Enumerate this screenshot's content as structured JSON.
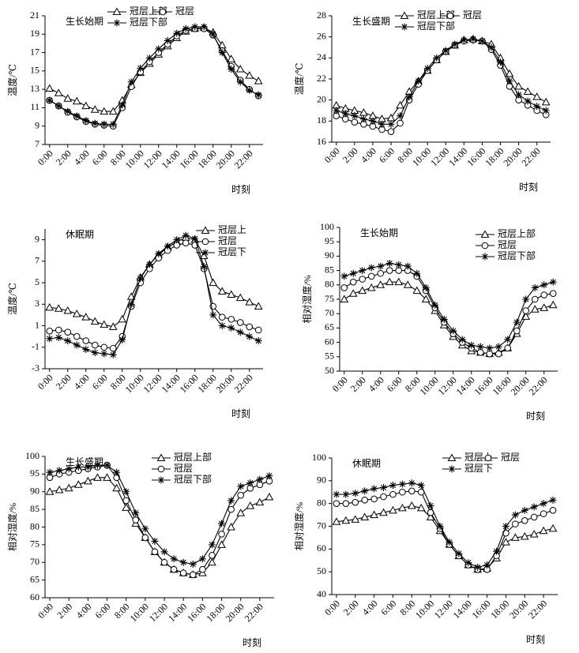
{
  "chart_data": [
    {
      "type": "line",
      "title": "生长始期",
      "y_label": "温度/℃",
      "x_label": "时刻",
      "categories": [
        "0:00",
        null,
        "2:00",
        null,
        "4:00",
        null,
        "6:00",
        null,
        "8:00",
        null,
        "10:00",
        null,
        "12:00",
        null,
        "14:00",
        null,
        "16:00",
        null,
        "18:00",
        null,
        "20:00",
        null,
        "22:00",
        null
      ],
      "ylim": [
        7,
        21
      ],
      "yticks": [
        7,
        9,
        11,
        13,
        15,
        17,
        19,
        21
      ],
      "series": [
        {
          "name": "冠层上部",
          "color": "#000000",
          "marker": "triangle",
          "values": [
            13.1,
            12.6,
            12.0,
            11.7,
            11.2,
            10.8,
            10.6,
            10.6,
            11.8,
            13.5,
            14.8,
            15.8,
            16.8,
            17.7,
            18.6,
            19.3,
            19.6,
            19.7,
            19.2,
            17.8,
            16.3,
            15.2,
            14.5,
            13.9
          ]
        },
        {
          "name": "冠层",
          "color": "#000000",
          "marker": "circle",
          "values": [
            11.8,
            11.2,
            10.5,
            10.0,
            9.5,
            9.2,
            9.1,
            9.0,
            11.0,
            13.3,
            14.9,
            16.0,
            17.0,
            17.9,
            18.8,
            19.4,
            19.6,
            19.6,
            18.9,
            17.2,
            15.5,
            14.0,
            13.0,
            12.3
          ]
        },
        {
          "name": "冠层下部",
          "color": "#000000",
          "marker": "star",
          "values": [
            11.8,
            11.2,
            10.6,
            10.1,
            9.6,
            9.3,
            9.2,
            9.2,
            11.3,
            13.8,
            15.3,
            16.4,
            17.4,
            18.3,
            19.1,
            19.6,
            19.8,
            19.8,
            19.0,
            17.0,
            15.2,
            13.8,
            12.9,
            12.4
          ]
        }
      ]
    },
    {
      "type": "line",
      "title": "生长盛期",
      "y_label": "温度/℃",
      "x_label": "时刻",
      "categories": [
        "0:00",
        null,
        "2:00",
        null,
        "4:00",
        null,
        "6:00",
        null,
        "8:00",
        null,
        "10:00",
        null,
        "12:00",
        null,
        "14:00",
        null,
        "16:00",
        null,
        "18:00",
        null,
        "20:00",
        null,
        "22:00",
        null
      ],
      "ylim": [
        16,
        28
      ],
      "yticks": [
        16,
        18,
        20,
        22,
        24,
        26,
        28
      ],
      "series": [
        {
          "name": "冠层上部",
          "color": "#000000",
          "marker": "triangle",
          "values": [
            19.5,
            19.2,
            19.0,
            18.8,
            18.5,
            18.2,
            18.3,
            19.5,
            20.8,
            21.8,
            22.8,
            23.8,
            24.6,
            25.2,
            25.7,
            25.8,
            25.6,
            25.3,
            24.0,
            22.5,
            21.3,
            20.8,
            20.3,
            19.8
          ]
        },
        {
          "name": "冠层",
          "color": "#000000",
          "marker": "circle",
          "values": [
            18.5,
            18.2,
            17.9,
            17.7,
            17.5,
            17.2,
            17.0,
            17.8,
            20.0,
            21.5,
            22.8,
            23.8,
            24.6,
            25.2,
            25.6,
            25.7,
            25.6,
            24.8,
            23.3,
            21.3,
            20.0,
            19.5,
            19.0,
            18.6
          ]
        },
        {
          "name": "冠层下部",
          "color": "#000000",
          "marker": "star",
          "values": [
            19.0,
            18.7,
            18.5,
            18.2,
            18.0,
            17.7,
            17.7,
            18.5,
            20.3,
            21.8,
            23.0,
            24.0,
            24.7,
            25.3,
            25.7,
            25.8,
            25.6,
            25.0,
            23.6,
            21.8,
            20.5,
            19.9,
            19.4,
            19.0
          ]
        }
      ]
    },
    {
      "type": "line",
      "title": "休眠期",
      "y_label": "温度/℃",
      "x_label": "时刻",
      "categories": [
        "0:00",
        null,
        "2:00",
        null,
        "4:00",
        null,
        "6:00",
        null,
        "8:00",
        null,
        "10:00",
        null,
        "12:00",
        null,
        "14:00",
        null,
        "16:00",
        null,
        "18:00",
        null,
        "20:00",
        null,
        "22:00",
        null
      ],
      "ylim": [
        -3,
        10
      ],
      "yticks": [
        -3,
        -1,
        1,
        3,
        5,
        7,
        9
      ],
      "series": [
        {
          "name": "冠层上",
          "color": "#000000",
          "marker": "triangle",
          "values": [
            2.7,
            2.6,
            2.4,
            2.1,
            1.8,
            1.4,
            1.1,
            0.9,
            1.6,
            3.7,
            5.5,
            6.7,
            7.6,
            8.3,
            8.8,
            9.2,
            9.0,
            7.5,
            5.0,
            4.2,
            3.9,
            3.6,
            3.2,
            2.8
          ]
        },
        {
          "name": "冠层",
          "color": "#000000",
          "marker": "circle",
          "values": [
            0.5,
            0.6,
            0.4,
            0.0,
            -0.4,
            -0.8,
            -1.0,
            -1.1,
            0.0,
            2.8,
            5.0,
            6.3,
            7.3,
            8.0,
            8.5,
            8.7,
            8.5,
            6.3,
            2.8,
            1.8,
            1.6,
            1.3,
            0.9,
            0.6
          ]
        },
        {
          "name": "冠层下",
          "color": "#000000",
          "marker": "star",
          "values": [
            -0.2,
            -0.1,
            -0.4,
            -0.8,
            -1.2,
            -1.5,
            -1.6,
            -1.7,
            -0.3,
            3.0,
            5.4,
            6.7,
            7.7,
            8.4,
            9.0,
            9.4,
            9.1,
            6.5,
            2.0,
            1.0,
            0.8,
            0.4,
            0.0,
            -0.4
          ]
        }
      ]
    },
    {
      "type": "line",
      "title": "生长始期",
      "y_label": "相对湿度/%",
      "x_label": "时刻",
      "categories": [
        "0:00",
        null,
        "2:00",
        null,
        "4:00",
        null,
        "6:00",
        null,
        "8:00",
        null,
        "10:00",
        null,
        "12:00",
        null,
        "14:00",
        null,
        "16:00",
        null,
        "18:00",
        null,
        "20:00",
        null,
        "22:00",
        null
      ],
      "ylim": [
        50,
        100
      ],
      "yticks": [
        50,
        55,
        60,
        65,
        70,
        75,
        80,
        85,
        90,
        95,
        100
      ],
      "series": [
        {
          "name": "冠层上部",
          "color": "#000000",
          "marker": "triangle",
          "values": [
            75,
            77,
            78,
            79,
            80,
            81,
            81,
            80,
            78,
            75,
            71,
            66,
            62,
            59,
            57,
            56.5,
            56,
            56.5,
            58,
            63,
            69,
            71.5,
            72,
            73
          ]
        },
        {
          "name": "冠层",
          "color": "#000000",
          "marker": "circle",
          "values": [
            79,
            81,
            82,
            83,
            84,
            85,
            85,
            85,
            83,
            78,
            72,
            67,
            63,
            60,
            58,
            56.5,
            56,
            56,
            58,
            64,
            71,
            75,
            76.5,
            77
          ]
        },
        {
          "name": "冠层下部",
          "color": "#000000",
          "marker": "star",
          "values": [
            83,
            84,
            85,
            86,
            86.5,
            87.5,
            87,
            86.5,
            84,
            79,
            73,
            68,
            64,
            61,
            59,
            58.5,
            58,
            58.5,
            61,
            67,
            75,
            79,
            80,
            81
          ]
        }
      ]
    },
    {
      "type": "line",
      "title": "生长盛期",
      "y_label": "相对湿度/%",
      "x_label": "时刻",
      "categories": [
        "0:00",
        null,
        "2:00",
        null,
        "4:00",
        null,
        "6:00",
        null,
        "8:00",
        null,
        "10:00",
        null,
        "12:00",
        null,
        "14:00",
        null,
        "16:00",
        null,
        "18:00",
        null,
        "20:00",
        null,
        "22:00",
        null
      ],
      "ylim": [
        60,
        100
      ],
      "yticks": [
        60,
        65,
        70,
        75,
        80,
        85,
        90,
        95,
        100
      ],
      "series": [
        {
          "name": "冠层上部",
          "color": "#000000",
          "marker": "triangle",
          "values": [
            90,
            90.5,
            91,
            92,
            93,
            94,
            94,
            91,
            85.5,
            81,
            77,
            73,
            70,
            68,
            67,
            66.5,
            67,
            70,
            75,
            80,
            84,
            86,
            87,
            88.5
          ]
        },
        {
          "name": "冠层",
          "color": "#000000",
          "marker": "circle",
          "values": [
            94,
            95,
            95.5,
            96,
            96.5,
            97,
            97.5,
            94,
            87.5,
            82,
            77,
            73,
            70,
            68,
            67,
            66.5,
            68,
            72,
            78,
            85,
            89,
            91,
            92,
            93
          ]
        },
        {
          "name": "冠层下部",
          "color": "#000000",
          "marker": "star",
          "values": [
            95.5,
            96,
            96.5,
            97,
            97,
            97.5,
            97.5,
            95.5,
            90,
            84,
            79.5,
            76,
            73,
            71,
            70,
            69.5,
            71,
            75,
            81,
            87.5,
            91.5,
            92.5,
            93.5,
            94.5
          ]
        }
      ]
    },
    {
      "type": "line",
      "title": "休眠期",
      "y_label": "相对湿度/%",
      "x_label": "时刻",
      "categories": [
        "0:00",
        null,
        "2:00",
        null,
        "4:00",
        null,
        "6:00",
        null,
        "8:00",
        null,
        "10:00",
        null,
        "12:00",
        null,
        "14:00",
        null,
        "16:00",
        null,
        "18:00",
        null,
        "20:00",
        null,
        "22:00",
        null
      ],
      "ylim": [
        40,
        100
      ],
      "yticks": [
        40,
        50,
        60,
        70,
        80,
        90,
        100
      ],
      "series": [
        {
          "name": "冠层上",
          "color": "#000000",
          "marker": "triangle",
          "values": [
            72,
            72.5,
            73,
            74,
            75,
            76,
            77,
            78,
            79,
            78,
            74,
            68,
            62,
            57,
            53,
            51,
            51.5,
            56,
            63,
            65,
            65.5,
            66.5,
            68,
            69
          ]
        },
        {
          "name": "冠层",
          "color": "#000000",
          "marker": "circle",
          "values": [
            80,
            80,
            80.5,
            81.5,
            82,
            83,
            84,
            85,
            85.5,
            85,
            76,
            69,
            62,
            57,
            53,
            51,
            51,
            57,
            67,
            71,
            72.5,
            74,
            75.5,
            77
          ]
        },
        {
          "name": "冠层下",
          "color": "#000000",
          "marker": "star",
          "values": [
            84,
            84,
            84.5,
            85.5,
            86.5,
            87,
            88,
            88.5,
            89,
            88,
            79,
            70,
            63,
            58,
            54,
            52,
            53,
            59,
            70,
            75,
            77,
            78.5,
            80,
            81.5
          ]
        }
      ]
    }
  ]
}
